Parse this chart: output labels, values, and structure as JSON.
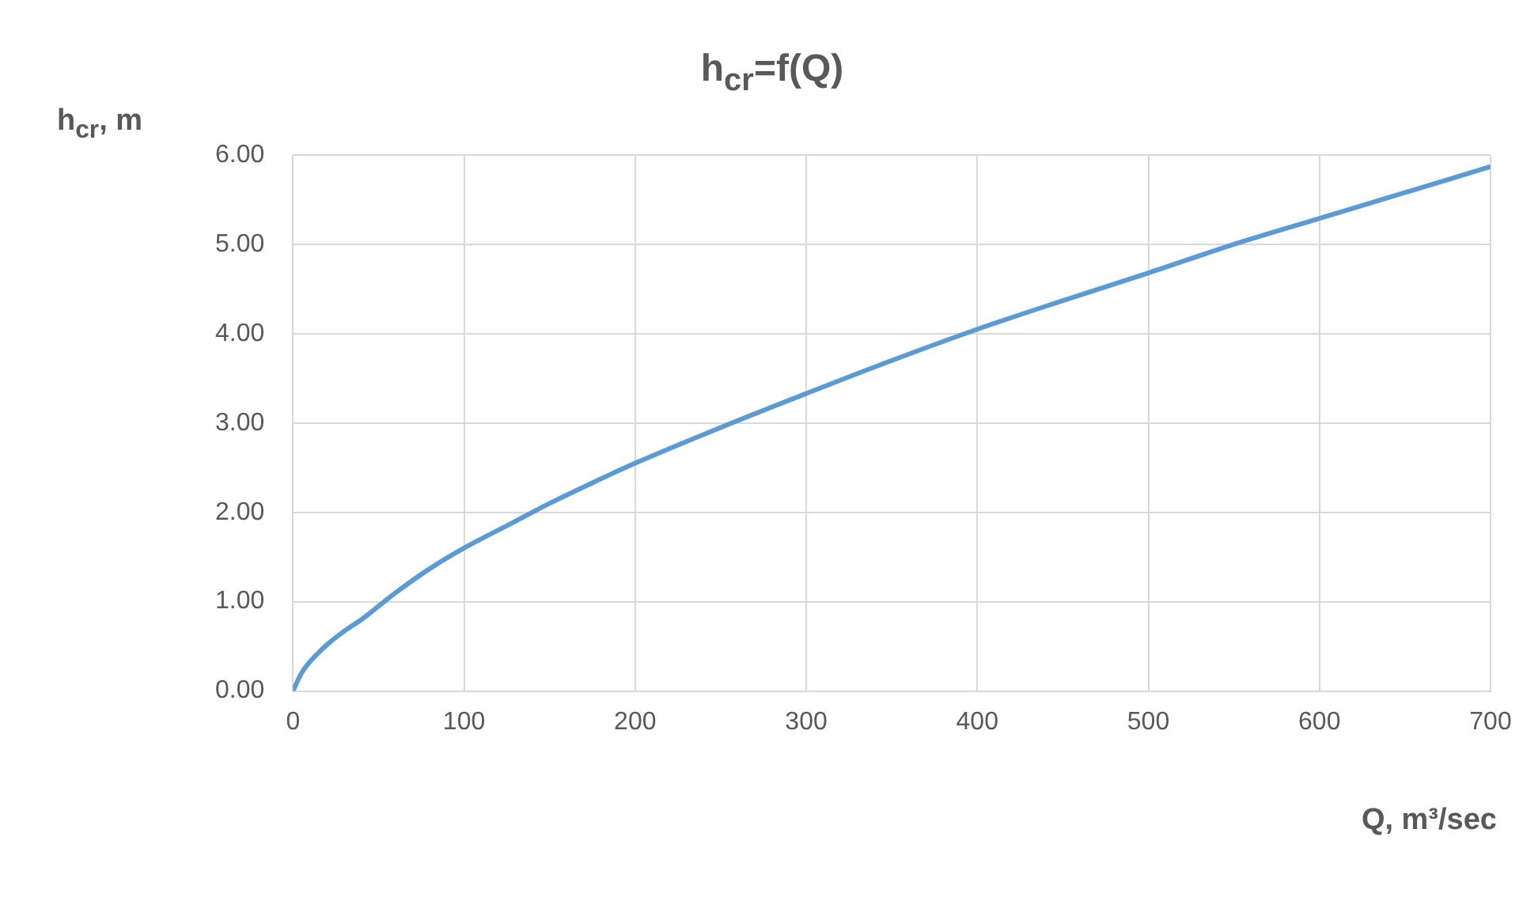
{
  "chart_data": {
    "type": "line",
    "title": "h$_{cr}$=f(Q)",
    "xlabel": "Q, m³/sec",
    "ylabel": "h$_{cr}$, m",
    "series": [
      {
        "color": "#5b9bd5",
        "x": [
          0,
          5,
          10,
          15,
          20,
          30,
          40,
          50,
          60,
          80,
          100,
          125,
          150,
          175,
          200,
          250,
          300,
          350,
          400,
          450,
          500,
          550,
          600,
          650,
          700
        ],
        "values": [
          0,
          0.2,
          0.33,
          0.43,
          0.52,
          0.67,
          0.8,
          0.95,
          1.1,
          1.37,
          1.6,
          1.85,
          2.1,
          2.33,
          2.55,
          2.95,
          3.33,
          3.7,
          4.05,
          4.37,
          4.68,
          5.0,
          5.29,
          5.58,
          5.87
        ]
      }
    ],
    "xlim": [
      0,
      700
    ],
    "xticks": [
      0,
      100,
      200,
      300,
      400,
      500,
      600,
      700
    ],
    "ylim": [
      0,
      6
    ],
    "yticks": [
      {
        "value": 0,
        "label": "0.00"
      },
      {
        "value": 1,
        "label": "1.00"
      },
      {
        "value": 2,
        "label": "2.00"
      },
      {
        "value": 3,
        "label": "3.00"
      },
      {
        "value": 4,
        "label": "4.00"
      },
      {
        "value": 5,
        "label": "5.00"
      },
      {
        "value": 6,
        "label": "6.00"
      }
    ],
    "grid": true,
    "legend": false,
    "marker": "none",
    "line_style": "solid"
  }
}
